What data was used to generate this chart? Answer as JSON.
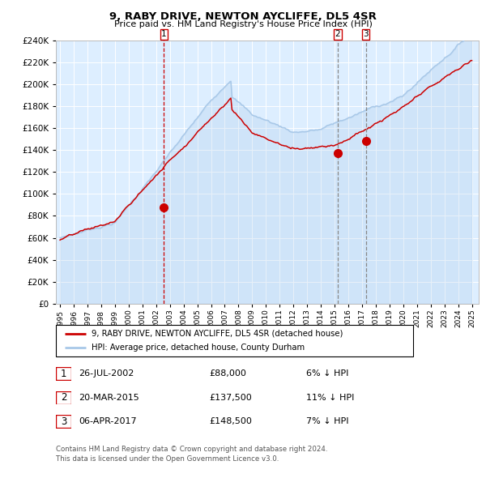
{
  "title": "9, RABY DRIVE, NEWTON AYCLIFFE, DL5 4SR",
  "subtitle": "Price paid vs. HM Land Registry's House Price Index (HPI)",
  "legend_line1": "9, RABY DRIVE, NEWTON AYCLIFFE, DL5 4SR (detached house)",
  "legend_line2": "HPI: Average price, detached house, County Durham",
  "footer1": "Contains HM Land Registry data © Crown copyright and database right 2024.",
  "footer2": "This data is licensed under the Open Government Licence v3.0.",
  "transactions": [
    {
      "num": 1,
      "date": "26-JUL-2002",
      "price": "£88,000",
      "hpi": "6% ↓ HPI",
      "year": 2002.57,
      "value": 88000,
      "vline_color": "#cc0000"
    },
    {
      "num": 2,
      "date": "20-MAR-2015",
      "price": "£137,500",
      "hpi": "11% ↓ HPI",
      "year": 2015.22,
      "value": 137500,
      "vline_color": "#888888"
    },
    {
      "num": 3,
      "date": "06-APR-2017",
      "price": "£148,500",
      "hpi": "7% ↓ HPI",
      "year": 2017.27,
      "value": 148500,
      "vline_color": "#888888"
    }
  ],
  "hpi_color": "#a8c8e8",
  "price_color": "#cc0000",
  "dot_color": "#cc0000",
  "bg_color": "#ddeeff",
  "grid_color": "#ffffff",
  "ylim": [
    0,
    240000
  ],
  "ytick_step": 20000,
  "xmin": 1994.7,
  "xmax": 2025.5,
  "xticks_start": 1995,
  "xticks_end": 2025
}
